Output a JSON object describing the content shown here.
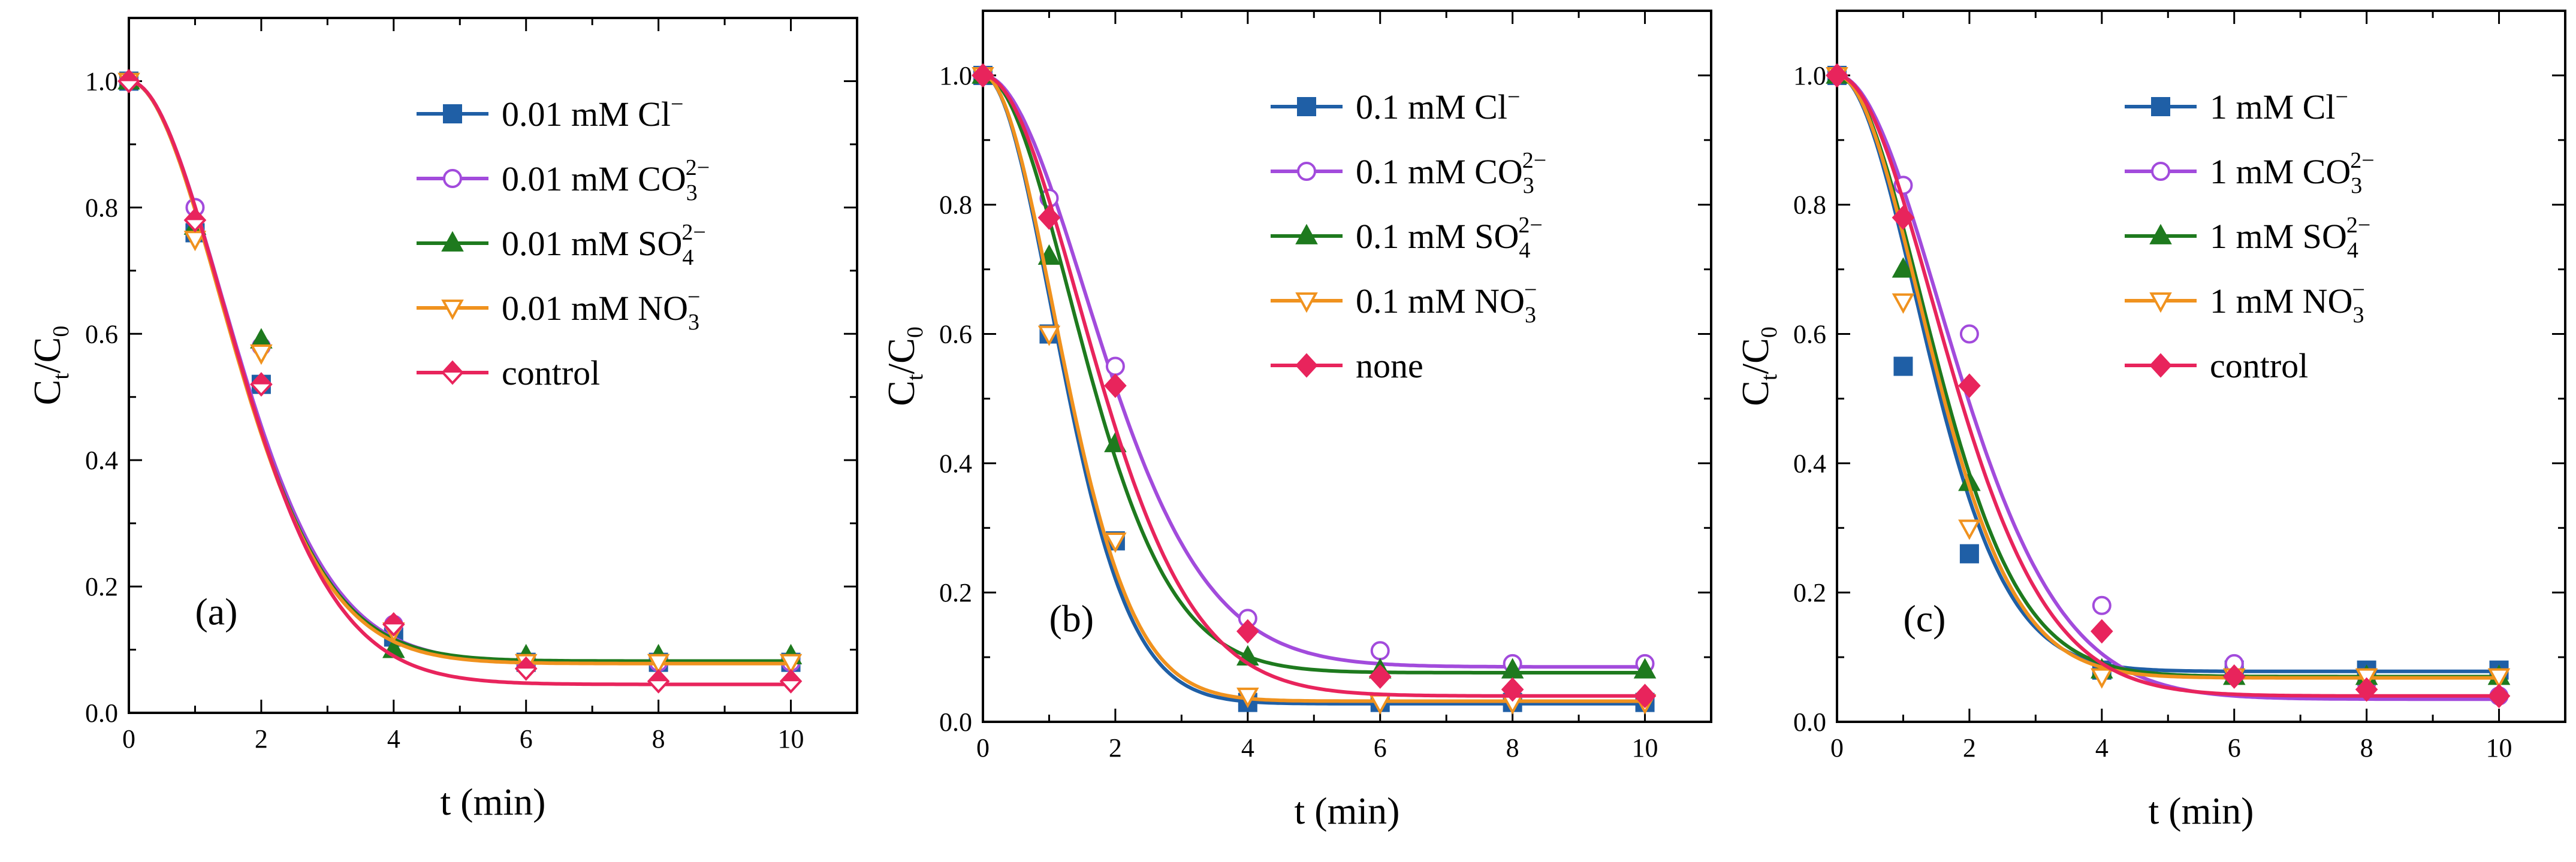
{
  "chart_data": [
    {
      "type": "scatter",
      "panel_label": "(a)",
      "xlabel": "t (min)",
      "ylabel": "C_t/C_0",
      "xlim": [
        0,
        11
      ],
      "ylim": [
        0,
        1.1
      ],
      "xticks": [
        0,
        2,
        4,
        6,
        8,
        10
      ],
      "yticks": [
        0.0,
        0.2,
        0.4,
        0.6,
        0.8,
        1.0
      ],
      "grid": false,
      "legend_position": "top-right",
      "series": [
        {
          "name": "0.01 mM Cl⁻",
          "legend": {
            "base": "0.01 mM Cl",
            "sup": "−"
          },
          "marker": "square",
          "filled": true,
          "color": "#1f5fa6",
          "x": [
            0,
            1,
            2,
            4,
            6,
            8,
            10
          ],
          "y": [
            1.0,
            0.76,
            0.52,
            0.12,
            0.08,
            0.08,
            0.08
          ],
          "fit_floor": 0.08,
          "fit_k": 0.3
        },
        {
          "name": "0.01 mM CO₃²⁻",
          "legend": {
            "base": "0.01 mM CO",
            "sub": "3",
            "sup": "2−"
          },
          "marker": "circle",
          "filled": false,
          "color": "#a24bdc",
          "x": [
            0,
            1,
            2,
            4,
            6,
            8,
            10
          ],
          "y": [
            1.0,
            0.8,
            0.58,
            0.14,
            0.08,
            0.08,
            0.08
          ],
          "fit_floor": 0.08,
          "fit_k": 0.29
        },
        {
          "name": "0.01 mM SO₄²⁻",
          "legend": {
            "base": "0.01 mM SO",
            "sub": "4",
            "sup": "2−"
          },
          "marker": "triangle",
          "filled": true,
          "color": "#1e7a1e",
          "x": [
            0,
            1,
            2,
            4,
            6,
            8,
            10
          ],
          "y": [
            1.0,
            0.77,
            0.59,
            0.1,
            0.09,
            0.09,
            0.09
          ],
          "fit_floor": 0.082,
          "fit_k": 0.3
        },
        {
          "name": "0.01 mM NO₃⁻",
          "legend": {
            "base": "0.01 mM NO",
            "sub": "3",
            "sup": "−"
          },
          "marker": "triangle-down",
          "filled": false,
          "color": "#f0921e",
          "x": [
            0,
            1,
            2,
            4,
            6,
            8,
            10
          ],
          "y": [
            1.0,
            0.75,
            0.57,
            0.13,
            0.08,
            0.08,
            0.08
          ],
          "fit_floor": 0.078,
          "fit_k": 0.3
        },
        {
          "name": "control",
          "legend": {
            "base": "control"
          },
          "marker": "diamond",
          "filled": "half",
          "color": "#e8245c",
          "x": [
            0,
            1,
            2,
            4,
            6,
            8,
            10
          ],
          "y": [
            1.0,
            0.78,
            0.52,
            0.14,
            0.07,
            0.05,
            0.05
          ],
          "fit_floor": 0.045,
          "fit_k": 0.28
        }
      ]
    },
    {
      "type": "scatter",
      "panel_label": "(b)",
      "xlabel": "t (min)",
      "ylabel": "C_t/C_0",
      "xlim": [
        0,
        11
      ],
      "ylim": [
        0,
        1.1
      ],
      "xticks": [
        0,
        2,
        4,
        6,
        8,
        10
      ],
      "yticks": [
        0.0,
        0.2,
        0.4,
        0.6,
        0.8,
        1.0
      ],
      "grid": false,
      "legend_position": "top-right",
      "series": [
        {
          "name": "0.1 mM Cl⁻",
          "legend": {
            "base": "0.1 mM Cl",
            "sup": "−"
          },
          "marker": "square",
          "filled": true,
          "color": "#1f5fa6",
          "x": [
            0,
            1,
            2,
            4,
            6,
            8,
            10
          ],
          "y": [
            1.0,
            0.6,
            0.28,
            0.03,
            0.03,
            0.03,
            0.03
          ],
          "fit_floor": 0.028,
          "fit_k": 0.52
        },
        {
          "name": "0.1 mM CO₃²⁻",
          "legend": {
            "base": "0.1 mM CO",
            "sub": "3",
            "sup": "2−"
          },
          "marker": "circle",
          "filled": false,
          "color": "#a24bdc",
          "x": [
            0,
            1,
            2,
            4,
            6,
            8,
            10
          ],
          "y": [
            1.0,
            0.81,
            0.55,
            0.16,
            0.11,
            0.09,
            0.09
          ],
          "fit_floor": 0.085,
          "fit_k": 0.24
        },
        {
          "name": "0.1 mM SO₄²⁻",
          "legend": {
            "base": "0.1 mM SO",
            "sub": "4",
            "sup": "2−"
          },
          "marker": "triangle",
          "filled": true,
          "color": "#1e7a1e",
          "x": [
            0,
            1,
            2,
            4,
            6,
            8,
            10
          ],
          "y": [
            1.0,
            0.72,
            0.43,
            0.1,
            0.08,
            0.08,
            0.08
          ],
          "fit_floor": 0.076,
          "fit_k": 0.33
        },
        {
          "name": "0.1 mM NO₃⁻",
          "legend": {
            "base": "0.1 mM NO",
            "sub": "3",
            "sup": "−"
          },
          "marker": "triangle-down",
          "filled": false,
          "color": "#f0921e",
          "x": [
            0,
            1,
            2,
            4,
            6,
            8,
            10
          ],
          "y": [
            1.0,
            0.6,
            0.28,
            0.04,
            0.03,
            0.03,
            0.03
          ],
          "fit_floor": 0.032,
          "fit_k": 0.5
        },
        {
          "name": "none",
          "legend": {
            "base": "none"
          },
          "marker": "diamond",
          "filled": true,
          "color": "#e8245c",
          "x": [
            0,
            1,
            2,
            4,
            6,
            8,
            10
          ],
          "y": [
            1.0,
            0.78,
            0.52,
            0.14,
            0.07,
            0.05,
            0.04
          ],
          "fit_floor": 0.04,
          "fit_k": 0.27
        }
      ]
    },
    {
      "type": "scatter",
      "panel_label": "(c)",
      "xlabel": "t (min)",
      "ylabel": "C_t/C_0",
      "xlim": [
        0,
        11
      ],
      "ylim": [
        0,
        1.1
      ],
      "xticks": [
        0,
        2,
        4,
        6,
        8,
        10
      ],
      "yticks": [
        0.0,
        0.2,
        0.4,
        0.6,
        0.8,
        1.0
      ],
      "grid": false,
      "legend_position": "top-right",
      "series": [
        {
          "name": "1 mM Cl⁻",
          "legend": {
            "base": "1 mM Cl",
            "sup": "−"
          },
          "marker": "square",
          "filled": true,
          "color": "#1f5fa6",
          "x": [
            0,
            1,
            2,
            4,
            6,
            8,
            10
          ],
          "y": [
            1.0,
            0.55,
            0.26,
            0.08,
            0.08,
            0.08,
            0.08
          ],
          "fit_floor": 0.078,
          "fit_k": 0.4
        },
        {
          "name": "1 mM CO₃²⁻",
          "legend": {
            "base": "1 mM CO",
            "sub": "3",
            "sup": "2−"
          },
          "marker": "circle",
          "filled": false,
          "color": "#a24bdc",
          "x": [
            0,
            1,
            2,
            4,
            6,
            8,
            10
          ],
          "y": [
            1.0,
            0.83,
            0.6,
            0.18,
            0.09,
            0.06,
            0.04
          ],
          "fit_floor": 0.035,
          "fit_k": 0.24
        },
        {
          "name": "1 mM SO₄²⁻",
          "legend": {
            "base": "1 mM SO",
            "sub": "4",
            "sup": "2−"
          },
          "marker": "triangle",
          "filled": true,
          "color": "#1e7a1e",
          "x": [
            0,
            1,
            2,
            4,
            6,
            8,
            10
          ],
          "y": [
            1.0,
            0.7,
            0.37,
            0.08,
            0.07,
            0.07,
            0.07
          ],
          "fit_floor": 0.07,
          "fit_k": 0.35
        },
        {
          "name": "1 mM NO₃⁻",
          "legend": {
            "base": "1 mM NO",
            "sub": "3",
            "sup": "−"
          },
          "marker": "triangle-down",
          "filled": false,
          "color": "#f0921e",
          "x": [
            0,
            1,
            2,
            4,
            6,
            8,
            10
          ],
          "y": [
            1.0,
            0.65,
            0.3,
            0.07,
            0.07,
            0.07,
            0.07
          ],
          "fit_floor": 0.068,
          "fit_k": 0.37
        },
        {
          "name": "control",
          "legend": {
            "base": "control"
          },
          "marker": "diamond",
          "filled": true,
          "color": "#e8245c",
          "x": [
            0,
            1,
            2,
            4,
            6,
            8,
            10
          ],
          "y": [
            1.0,
            0.78,
            0.52,
            0.14,
            0.07,
            0.05,
            0.04
          ],
          "fit_floor": 0.04,
          "fit_k": 0.27
        }
      ]
    }
  ]
}
